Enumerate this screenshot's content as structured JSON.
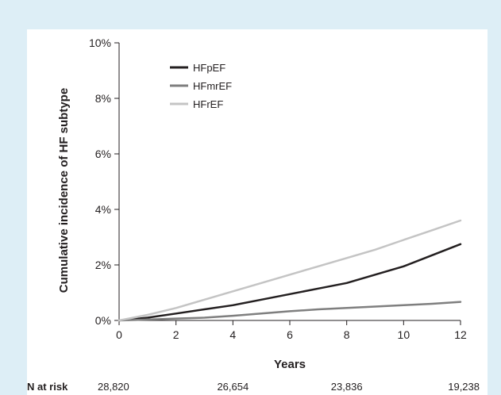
{
  "chart_data": {
    "type": "line",
    "xlabel": "Years",
    "ylabel": "Cumulative incidence of HF subtype",
    "xlim": [
      0,
      12
    ],
    "ylim": [
      0,
      10
    ],
    "x_ticks": [
      0,
      2,
      4,
      6,
      8,
      10,
      12
    ],
    "y_ticks": [
      0,
      2,
      4,
      6,
      8,
      10
    ],
    "y_tick_labels": [
      "0%",
      "2%",
      "4%",
      "6%",
      "8%",
      "10%"
    ],
    "grid": false,
    "legend_position": "top-left",
    "series": [
      {
        "name": "HFpEF",
        "color": "#231f20",
        "x": [
          0,
          1,
          2,
          3,
          4,
          5,
          6,
          7,
          8,
          9,
          10,
          11,
          12
        ],
        "values": [
          0,
          0.1,
          0.25,
          0.4,
          0.55,
          0.75,
          0.95,
          1.15,
          1.35,
          1.65,
          1.95,
          2.35,
          2.75
        ]
      },
      {
        "name": "HFmrEF",
        "color": "#7f7f7f",
        "x": [
          0,
          1,
          2,
          3,
          4,
          5,
          6,
          7,
          8,
          9,
          10,
          11,
          12
        ],
        "values": [
          0,
          0.03,
          0.07,
          0.1,
          0.17,
          0.25,
          0.33,
          0.4,
          0.45,
          0.5,
          0.55,
          0.6,
          0.67
        ]
      },
      {
        "name": "HFrEF",
        "color": "#c4c4c4",
        "x": [
          0,
          1,
          2,
          3,
          4,
          5,
          6,
          7,
          8,
          9,
          10,
          11,
          12
        ],
        "values": [
          0,
          0.2,
          0.45,
          0.75,
          1.05,
          1.35,
          1.65,
          1.95,
          2.25,
          2.55,
          2.9,
          3.25,
          3.6
        ]
      }
    ],
    "at_risk": {
      "label": "N at risk",
      "x": [
        0,
        4,
        8,
        12
      ],
      "values": [
        "28,820",
        "26,654",
        "23,836",
        "19,238"
      ]
    }
  }
}
